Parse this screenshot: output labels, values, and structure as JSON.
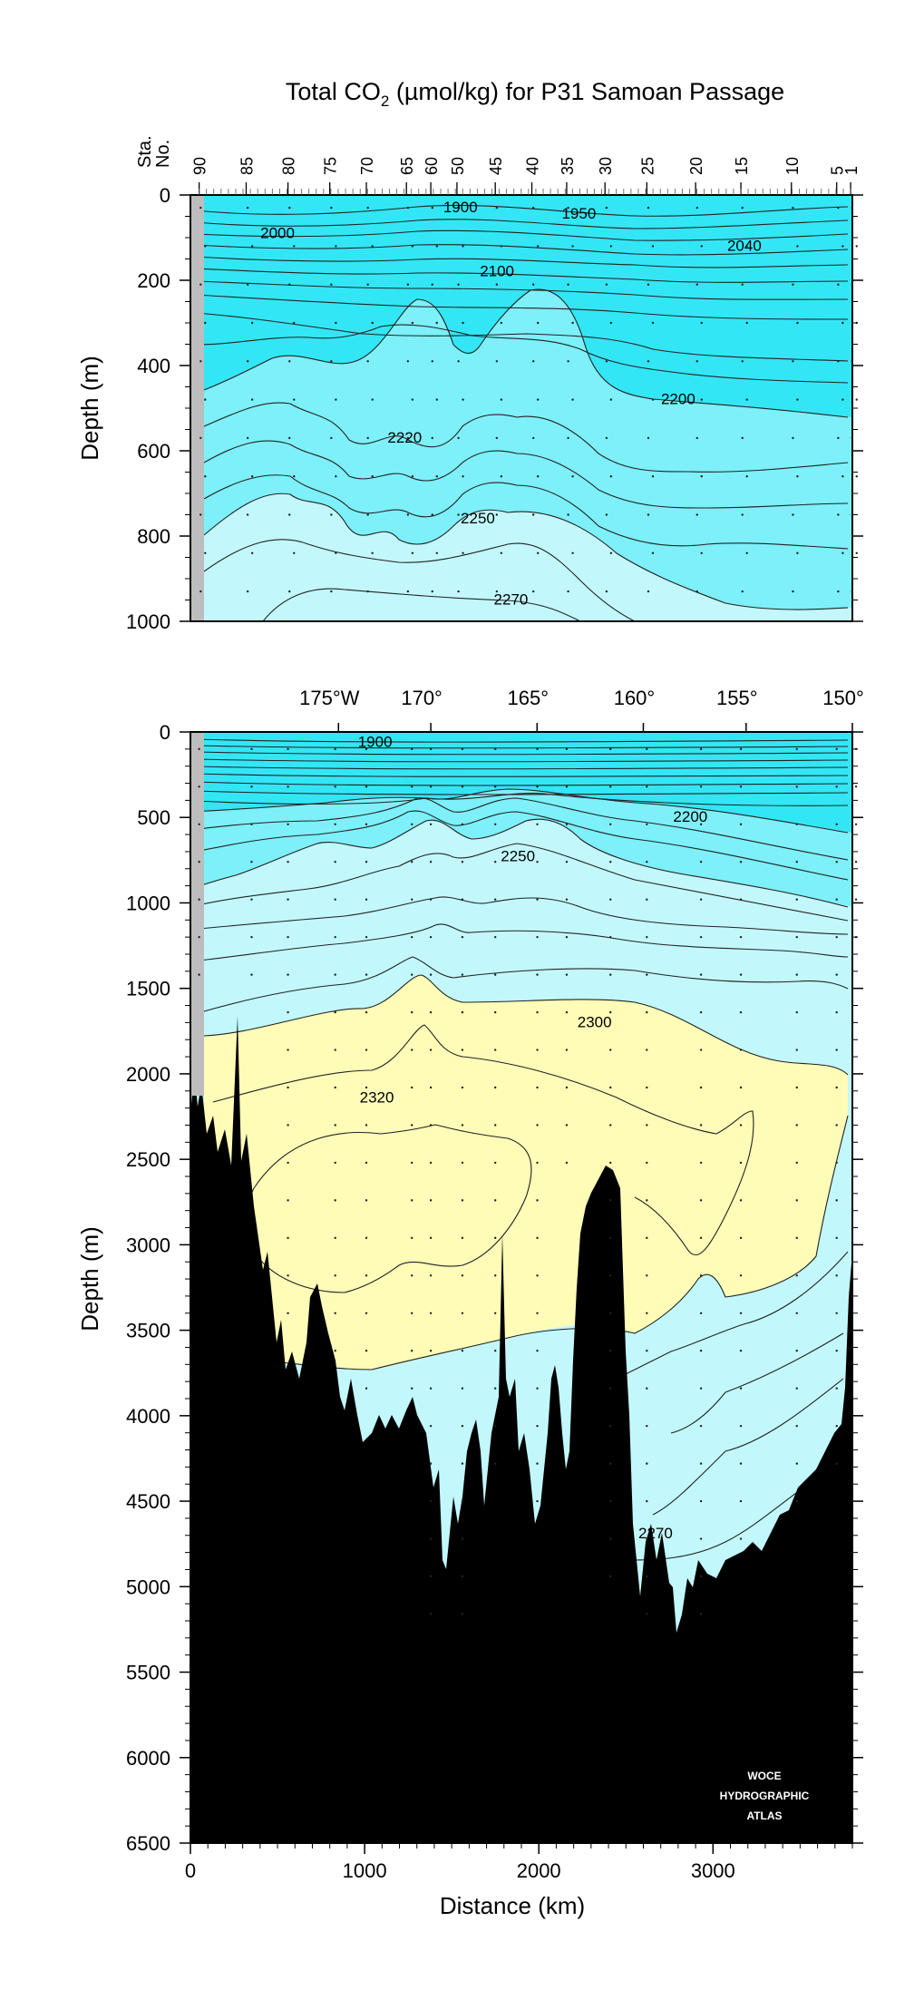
{
  "chart_data": [
    {
      "type": "contour",
      "title": "Total CO₂ (µmol/kg) for P31 Samoan Passage",
      "title_main": "Total CO",
      "title_sub": "2",
      "title_rest": " (µmol/kg) for P31 Samoan Passage",
      "ylabel": "Depth (m)",
      "station_label_1": "Sta.",
      "station_label_2": "No.",
      "xlim": [
        0,
        3800
      ],
      "ylim": [
        1000,
        0
      ],
      "yticks": [
        "0",
        "200",
        "400",
        "600",
        "800",
        "1000"
      ],
      "station_ticks": [
        {
          "label": "90",
          "x": 50
        },
        {
          "label": "85",
          "x": 320
        },
        {
          "label": "80",
          "x": 560
        },
        {
          "label": "75",
          "x": 800
        },
        {
          "label": "70",
          "x": 1010
        },
        {
          "label": "65",
          "x": 1240
        },
        {
          "label": "60",
          "x": 1380
        },
        {
          "label": "50",
          "x": 1530
        },
        {
          "label": "45",
          "x": 1750
        },
        {
          "label": "40",
          "x": 1960
        },
        {
          "label": "35",
          "x": 2160
        },
        {
          "label": "30",
          "x": 2380
        },
        {
          "label": "25",
          "x": 2620
        },
        {
          "label": "20",
          "x": 2900
        },
        {
          "label": "15",
          "x": 3160
        },
        {
          "label": "10",
          "x": 3450
        },
        {
          "label": "5",
          "x": 3710
        },
        {
          "label": "1",
          "x": 3790
        }
      ],
      "contour_labels": [
        {
          "text": "1900",
          "x": 1550,
          "y": 30
        },
        {
          "text": "1950",
          "x": 2230,
          "y": 45
        },
        {
          "text": "2000",
          "x": 500,
          "y": 90
        },
        {
          "text": "2040",
          "x": 3180,
          "y": 120
        },
        {
          "text": "2100",
          "x": 1760,
          "y": 180
        },
        {
          "text": "2200",
          "x": 2800,
          "y": 480
        },
        {
          "text": "2220",
          "x": 1230,
          "y": 570
        },
        {
          "text": "2250",
          "x": 1650,
          "y": 760
        },
        {
          "text": "2270",
          "x": 1840,
          "y": 950
        }
      ]
    },
    {
      "type": "contour",
      "ylabel": "Depth (m)",
      "xlabel": "Distance (km)",
      "xlim": [
        0,
        3800
      ],
      "ylim": [
        6500,
        0
      ],
      "xticks": [
        "0",
        "1000",
        "2000",
        "3000"
      ],
      "yticks": [
        "0",
        "500",
        "1000",
        "1500",
        "2000",
        "2500",
        "3000",
        "3500",
        "4000",
        "4500",
        "5000",
        "5500",
        "6000",
        "6500"
      ],
      "longitude_ticks": [
        {
          "label": "175°W",
          "x": 850
        },
        {
          "label": "170°",
          "x": 1380
        },
        {
          "label": "165°",
          "x": 1990
        },
        {
          "label": "160°",
          "x": 2600
        },
        {
          "label": "155°",
          "x": 3190
        },
        {
          "label": "150°",
          "x": 3800
        }
      ],
      "contour_labels": [
        {
          "text": "1900",
          "x": 1060,
          "y": 60
        },
        {
          "text": "2200",
          "x": 2870,
          "y": 500
        },
        {
          "text": "2250",
          "x": 1880,
          "y": 730
        },
        {
          "text": "2300",
          "x": 2320,
          "y": 1700
        },
        {
          "text": "2320",
          "x": 1070,
          "y": 2140
        },
        {
          "text": "2270",
          "x": 2670,
          "y": 4690
        }
      ],
      "watermark": [
        "WOCE",
        "HYDROGRAPHIC",
        "ATLAS"
      ]
    }
  ],
  "colors": {
    "band_dark": "#33e6f5",
    "band_mid": "#7df0f9",
    "band_light": "#c2f8fc",
    "band_yellow": "#fffcb8",
    "land_gray": "#bdbdbd",
    "bottom": "#000000"
  }
}
